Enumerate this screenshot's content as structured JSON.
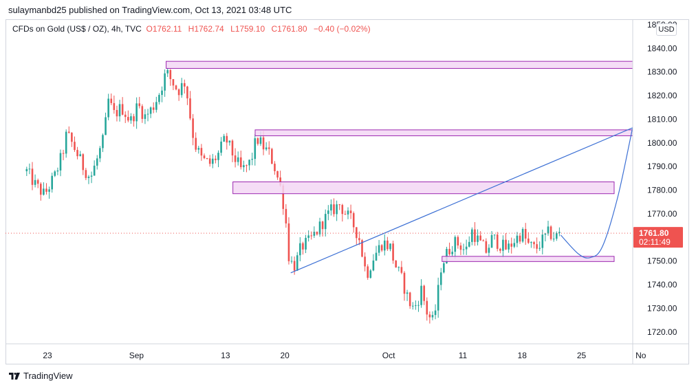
{
  "publisher_line": "sulaymanbd25 published on TradingView.com, Oct 13, 2021 03:48 UTC",
  "legend": {
    "symbol": "CFDs on Gold (US$ / OZ), 4h, TVC",
    "open": "O1762.11",
    "high": "H1762.74",
    "low": "L1759.10",
    "close": "C1761.80",
    "change": "−0.40 (−0.02%)"
  },
  "currency_button": "USD",
  "footer": {
    "brand": "TradingView",
    "logo_icon": "tradingview-logo-icon"
  },
  "price_label": {
    "price": "1761.80",
    "countdown": "02:11:49"
  },
  "chart_data": {
    "type": "candlestick",
    "symbol": "CFDs on Gold (US$ / OZ)",
    "interval": "4h",
    "ylim": [
      1715,
      1852
    ],
    "y_ticks": [
      "1720.00",
      "1730.00",
      "1740.00",
      "1750.00",
      "1760.00",
      "1770.00",
      "1780.00",
      "1790.00",
      "1800.00",
      "1810.00",
      "1820.00",
      "1830.00",
      "1840.00",
      "1850.00"
    ],
    "x_ticks": [
      "23",
      "Sep",
      "13",
      "20",
      "Oct",
      "11",
      "18",
      "25",
      "No"
    ],
    "colors": {
      "up": "#26a69a",
      "down": "#ef5350",
      "zone_fill": "#f3d7f5",
      "zone_border": "#9c27b0",
      "drawing": "#3b6fd4",
      "last_price_line": "#ef5350"
    },
    "price_path": [
      [
        -1.4,
        1788
      ],
      [
        -0.8,
        1782
      ],
      [
        -0.2,
        1778
      ],
      [
        0.5,
        1786
      ],
      [
        1.0,
        1795
      ],
      [
        1.3,
        1804
      ],
      [
        1.8,
        1798
      ],
      [
        2.4,
        1790
      ],
      [
        2.9,
        1785
      ],
      [
        3.4,
        1794
      ],
      [
        3.8,
        1802
      ],
      [
        4.1,
        1818
      ],
      [
        4.5,
        1812
      ],
      [
        5.0,
        1815
      ],
      [
        5.6,
        1809
      ],
      [
        6.1,
        1816
      ],
      [
        6.6,
        1811
      ],
      [
        7.1,
        1815
      ],
      [
        7.6,
        1822
      ],
      [
        8.0,
        1830
      ],
      [
        8.3,
        1827
      ],
      [
        8.8,
        1822
      ],
      [
        9.3,
        1826
      ],
      [
        9.6,
        1812
      ],
      [
        9.9,
        1800
      ],
      [
        10.4,
        1793
      ],
      [
        11.0,
        1791
      ],
      [
        11.5,
        1795
      ],
      [
        12.0,
        1802
      ],
      [
        12.5,
        1795
      ],
      [
        13.1,
        1788
      ],
      [
        13.7,
        1792
      ],
      [
        14.1,
        1802
      ],
      [
        14.6,
        1798
      ],
      [
        15.0,
        1795
      ],
      [
        15.3,
        1790
      ],
      [
        15.8,
        1779
      ],
      [
        16.1,
        1765
      ],
      [
        16.3,
        1750
      ],
      [
        16.7,
        1748
      ],
      [
        17.1,
        1756
      ],
      [
        17.6,
        1758
      ],
      [
        18.2,
        1763
      ],
      [
        18.6,
        1767
      ],
      [
        19.1,
        1771
      ],
      [
        19.7,
        1774
      ],
      [
        20.1,
        1770
      ],
      [
        20.5,
        1767
      ],
      [
        21.0,
        1760
      ],
      [
        21.5,
        1744
      ],
      [
        22.0,
        1752
      ],
      [
        22.6,
        1758
      ],
      [
        23.1,
        1756
      ],
      [
        23.4,
        1749
      ],
      [
        23.9,
        1742
      ],
      [
        24.3,
        1734
      ],
      [
        24.6,
        1730
      ],
      [
        24.9,
        1732
      ],
      [
        25.2,
        1738
      ],
      [
        25.6,
        1728
      ],
      [
        26.0,
        1724
      ],
      [
        26.3,
        1735
      ],
      [
        26.5,
        1747
      ],
      [
        26.9,
        1753
      ],
      [
        27.4,
        1758
      ],
      [
        27.8,
        1757
      ],
      [
        28.2,
        1754
      ],
      [
        28.6,
        1763
      ],
      [
        29.1,
        1758
      ],
      [
        29.6,
        1754
      ],
      [
        30.0,
        1760
      ],
      [
        30.5,
        1757
      ],
      [
        31.0,
        1755
      ],
      [
        31.5,
        1759
      ],
      [
        32.0,
        1762
      ],
      [
        32.4,
        1757
      ],
      [
        32.9,
        1755
      ],
      [
        33.4,
        1759
      ],
      [
        33.8,
        1762
      ],
      [
        34.2,
        1760
      ],
      [
        34.6,
        1762
      ]
    ],
    "zones": [
      {
        "name": "zone-1833",
        "x_start": 8.0,
        "x_end": 41.5,
        "y_low": 1831.5,
        "y_high": 1834.5
      },
      {
        "name": "zone-1804",
        "x_start": 14.0,
        "x_end": 41.0,
        "y_low": 1803.0,
        "y_high": 1805.5
      },
      {
        "name": "zone-1782",
        "x_start": 12.5,
        "x_end": 38.2,
        "y_low": 1778.5,
        "y_high": 1783.5
      },
      {
        "name": "zone-1751",
        "x_start": 26.6,
        "x_end": 38.2,
        "y_low": 1749.8,
        "y_high": 1752.0
      }
    ],
    "trendline": {
      "from": [
        16.4,
        1745.0
      ],
      "to": [
        40.8,
        1810.0
      ]
    },
    "projection_curve": [
      [
        34.6,
        1761
      ],
      [
        35.8,
        1753
      ],
      [
        36.6,
        1751.5
      ],
      [
        37.4,
        1756
      ],
      [
        38.4,
        1776
      ],
      [
        39.3,
        1802
      ],
      [
        40.4,
        1836
      ]
    ],
    "last_price": 1761.8
  }
}
